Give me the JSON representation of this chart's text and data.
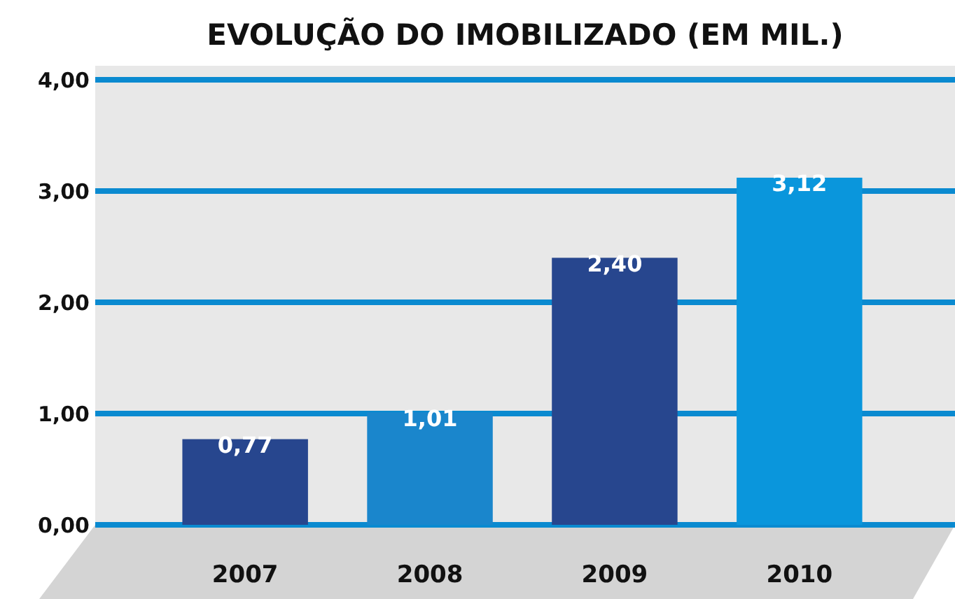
{
  "chart_data": {
    "type": "bar",
    "title": "EVOLUÇÃO DO IMOBILIZADO  (EM MIL.)",
    "categories": [
      "2007",
      "2008",
      "2009",
      "2010"
    ],
    "values": [
      0.77,
      1.01,
      2.4,
      3.12
    ],
    "colors": [
      "#27468e",
      "#1a86cc",
      "#27468e",
      "#0a96dc"
    ],
    "value_labels": [
      "0,77",
      "1,01",
      "2,40",
      "3,12"
    ],
    "ylim": [
      0,
      4
    ],
    "yticks": [
      {
        "value": 0,
        "label": "0,00"
      },
      {
        "value": 1,
        "label": "1,00"
      },
      {
        "value": 2,
        "label": "2,00"
      },
      {
        "value": 3,
        "label": "3,00"
      },
      {
        "value": 4,
        "label": "4,00"
      }
    ],
    "grid": "y"
  }
}
